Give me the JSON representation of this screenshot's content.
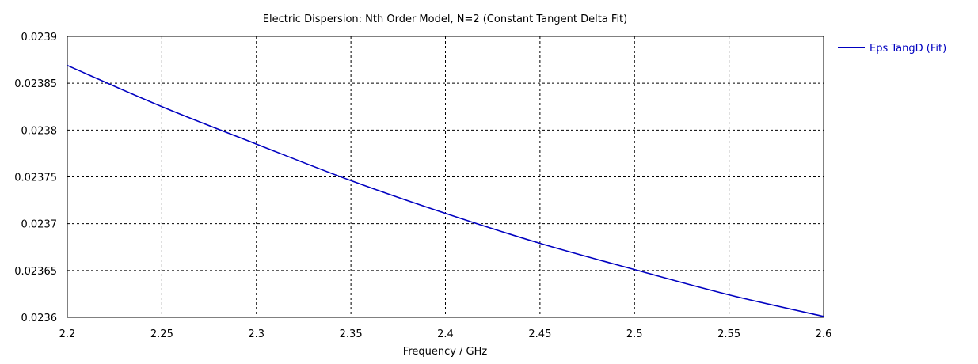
{
  "chart_data": {
    "type": "line",
    "title": "Electric Dispersion: Nth Order Model, N=2 (Constant Tangent Delta Fit)",
    "xlabel": "Frequency / GHz",
    "ylabel": "",
    "xlim": [
      2.2,
      2.6
    ],
    "ylim": [
      0.0236,
      0.0239
    ],
    "xticks": [
      2.2,
      2.25,
      2.3,
      2.35,
      2.4,
      2.45,
      2.5,
      2.55,
      2.6
    ],
    "xtick_labels": [
      "2.2",
      "2.25",
      "2.3",
      "2.35",
      "2.4",
      "2.45",
      "2.5",
      "2.55",
      "2.6"
    ],
    "yticks": [
      0.0236,
      0.02365,
      0.0237,
      0.02375,
      0.0238,
      0.02385,
      0.0239
    ],
    "ytick_labels": [
      "0.0236",
      "0.02365",
      "0.0237",
      "0.02375",
      "0.0238",
      "0.02385",
      "0.0239"
    ],
    "grid": true,
    "legend_position": "right",
    "series": [
      {
        "name": "Eps TangD (Fit)",
        "color": "#0000c0",
        "x": [
          2.2,
          2.25,
          2.3,
          2.35,
          2.4,
          2.45,
          2.5,
          2.55,
          2.6
        ],
        "y": [
          0.023869,
          0.023825,
          0.023785,
          0.023746,
          0.023711,
          0.023679,
          0.023651,
          0.023624,
          0.023601
        ]
      }
    ]
  }
}
